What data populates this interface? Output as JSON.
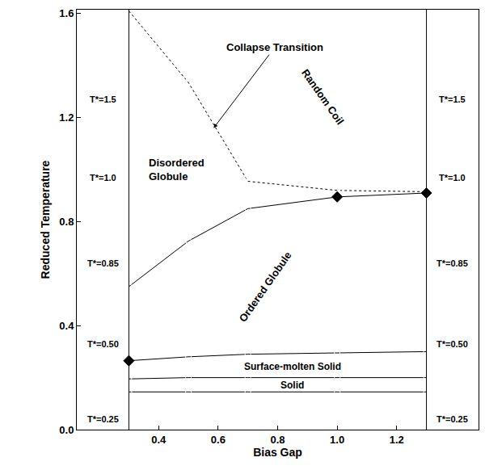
{
  "chart_data": {
    "type": "line",
    "x_label": "Bias Gap",
    "y_label": "Reduced Temperature",
    "xlim": [
      0.125,
      1.475
    ],
    "ylim": [
      0,
      1.615
    ],
    "xticks": [
      0.4,
      0.6,
      0.8,
      {
        "value": 1.0,
        "label": "1.0"
      },
      1.2
    ],
    "yticks": [
      {
        "value": 0.0,
        "label": "0.0"
      },
      0.4,
      0.8,
      1.2,
      1.6
    ],
    "grid": false,
    "vlines": [
      0.3,
      1.3
    ],
    "series": [
      {
        "x": [
          0.3,
          0.5,
          0.7,
          1.0,
          1.3
        ],
        "values": [
          1.61,
          1.335,
          0.955,
          0.92,
          0.915
        ],
        "color": "#000000",
        "marker": "open_square",
        "line_style": "dotted"
      },
      {
        "x": [
          0.3,
          0.5,
          0.7,
          1.0,
          1.3
        ],
        "values": [
          0.55,
          0.725,
          0.85,
          0.895,
          0.91
        ],
        "color": "#000000",
        "marker": "open_circle",
        "line_style": "solid"
      },
      {
        "x": [
          0.3,
          0.5,
          0.7,
          1.0,
          1.3
        ],
        "values": [
          0.265,
          0.28,
          0.29,
          0.295,
          0.3
        ],
        "color": "#000000",
        "marker": "open_circle",
        "line_style": "solid"
      },
      {
        "x": [
          0.3,
          0.5,
          0.7,
          1.0,
          1.3
        ],
        "values": [
          0.195,
          0.2,
          0.2,
          0.2,
          0.2
        ],
        "color": "#000000",
        "marker": "open_circle",
        "line_style": "solid"
      },
      {
        "x": [
          0.3,
          0.5,
          0.7,
          1.0,
          1.3
        ],
        "values": [
          0.145,
          0.145,
          0.145,
          0.145,
          0.145
        ],
        "color": "#000000",
        "marker": "open_circle",
        "line_style": "solid"
      },
      {
        "x": [
          0.3,
          1.0,
          1.3
        ],
        "values": [
          0.265,
          0.895,
          0.91
        ],
        "color": "#000000",
        "marker": "diamond",
        "line_style": "none"
      }
    ],
    "annotations": [
      "Collapse Transition",
      "Random Coil",
      "Disordered Globule",
      "Ordered Globule",
      "Surface-molten Solid",
      "Solid"
    ],
    "left_panel_labels": [
      "T*=1.5",
      "T*=1.0",
      "T*=0.85",
      "T*=0.50",
      "T*=0.25"
    ],
    "right_panel_labels": [
      "T*=1.5",
      "T*=1.0",
      "T*=0.85",
      "T*=0.50",
      "T*=0.25"
    ]
  }
}
